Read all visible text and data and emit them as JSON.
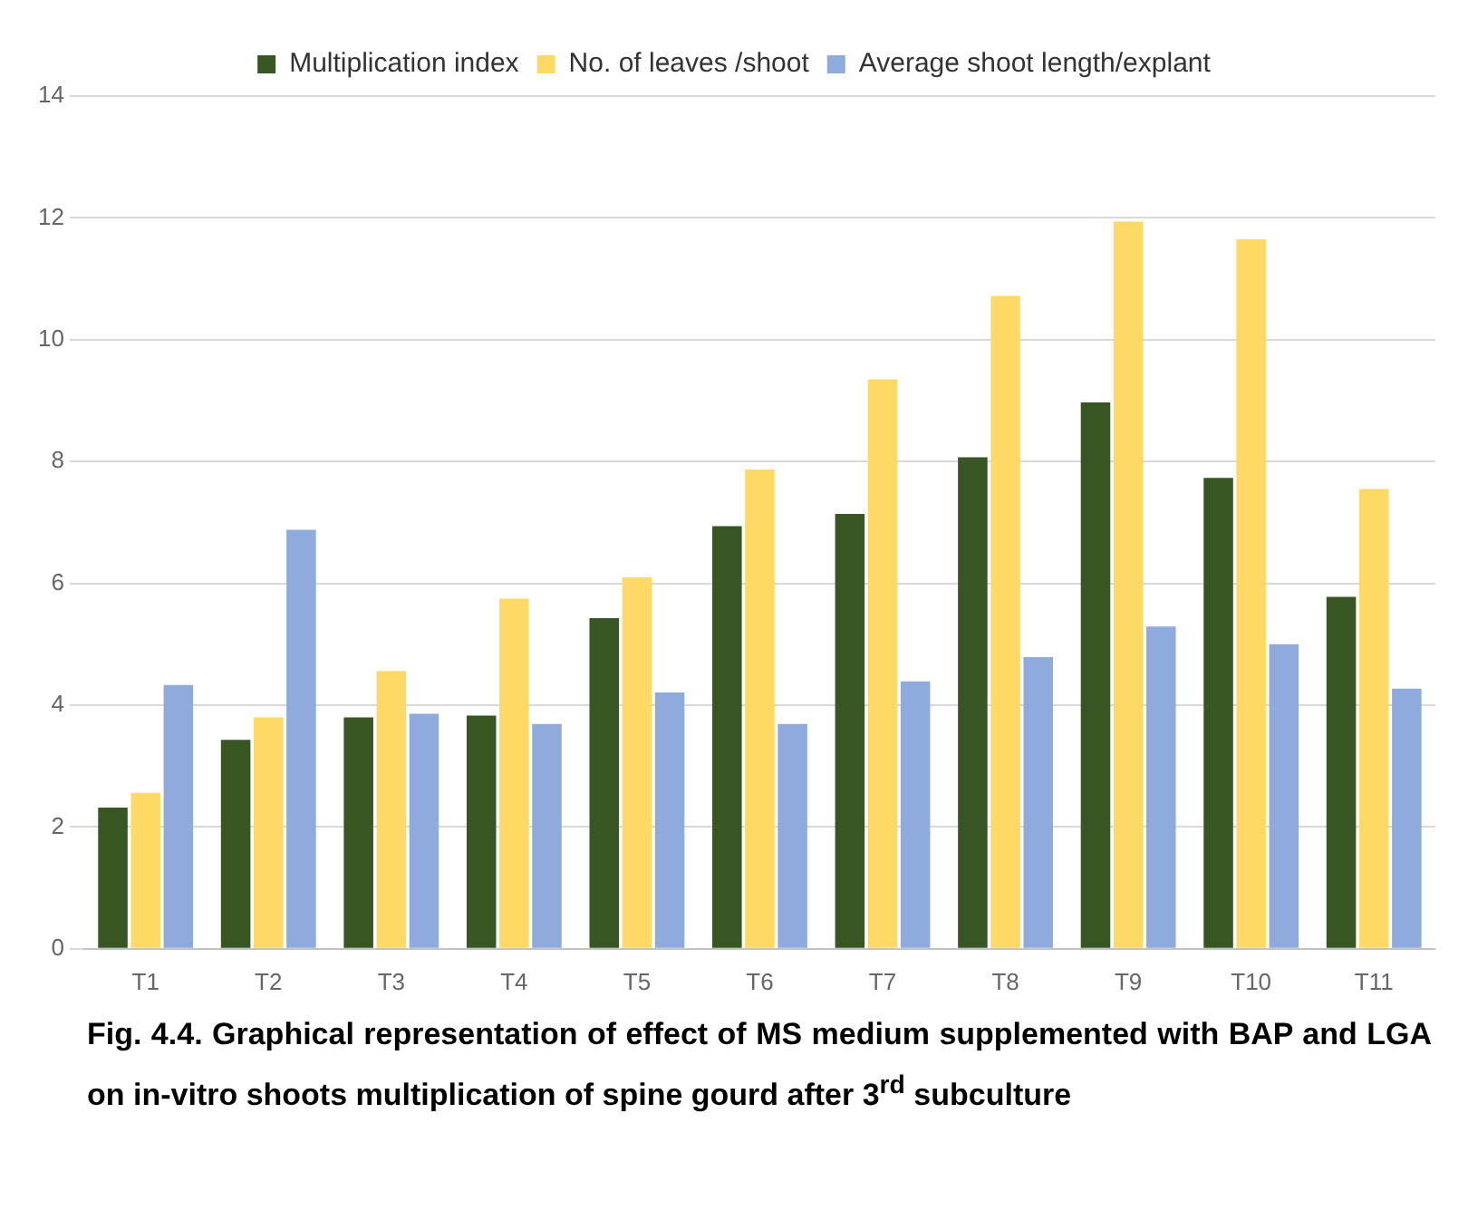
{
  "chart_data": {
    "type": "bar",
    "categories": [
      "T1",
      "T2",
      "T3",
      "T4",
      "T5",
      "T6",
      "T7",
      "T8",
      "T9",
      "T10",
      "T11"
    ],
    "series": [
      {
        "name": "Multiplication index",
        "color": "#375623",
        "values": [
          2.32,
          3.43,
          3.8,
          3.83,
          5.43,
          6.94,
          7.14,
          8.07,
          8.97,
          7.73,
          5.78
        ]
      },
      {
        "name": "No. of leaves /shoot",
        "color": "#ffd966",
        "values": [
          2.56,
          3.8,
          4.56,
          5.75,
          6.1,
          7.87,
          9.35,
          10.72,
          11.94,
          11.65,
          7.55
        ]
      },
      {
        "name": "Average shoot length/explant",
        "color": "#8faadc",
        "values": [
          4.33,
          6.88,
          3.86,
          3.69,
          4.21,
          3.69,
          4.39,
          4.79,
          5.29,
          5.0,
          4.27
        ]
      }
    ],
    "ylim": [
      0,
      14
    ],
    "yticks": [
      0,
      2,
      4,
      6,
      8,
      10,
      12,
      14
    ],
    "grid": "y",
    "legend": "top",
    "annotations": [
      "Fig. 4.4. Graphical representation of effect of MS medium supplemented with BAP and LGA on in-vitro shoots multiplication of spine gourd after 3$^{rd}$ subculture"
    ]
  }
}
